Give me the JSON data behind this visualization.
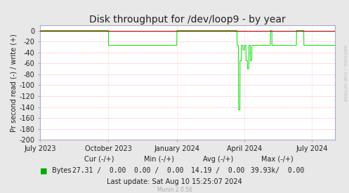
{
  "title": "Disk throughput for /dev/loop9 - by year",
  "ylabel": "Pr second read (-) / write (+)",
  "bg_color": "#e8e8e8",
  "plot_bg_color": "#ffffff",
  "grid_color": "#ffaaaa",
  "grid_color_v": "#ffcccc",
  "line_color": "#00dd00",
  "zero_line_color": "#aa0000",
  "ylim": [
    -200,
    10
  ],
  "yticks": [
    0,
    -20,
    -40,
    -60,
    -80,
    -100,
    -120,
    -140,
    -160,
    -180,
    -200
  ],
  "xticklabels": [
    "July 2023",
    "October 2023",
    "January 2024",
    "April 2024",
    "July 2024"
  ],
  "legend_label": "Bytes",
  "legend_color": "#00aa00",
  "cur_neg": "27.31",
  "cur_pos": "0.00",
  "min_neg": "0.00",
  "min_pos": "0.00",
  "avg_neg": "14.19",
  "avg_pos": "0.00",
  "max_neg": "39.93k",
  "max_pos": "0.00",
  "last_update": "Last update: Sat Aug 10 15:25:07 2024",
  "munin_version": "Munin 2.0.56",
  "watermark": "RRDTOOL / TOBI OETIKER",
  "title_fontsize": 10,
  "axis_fontsize": 7,
  "legend_fontsize": 7,
  "footer_fontsize": 7
}
